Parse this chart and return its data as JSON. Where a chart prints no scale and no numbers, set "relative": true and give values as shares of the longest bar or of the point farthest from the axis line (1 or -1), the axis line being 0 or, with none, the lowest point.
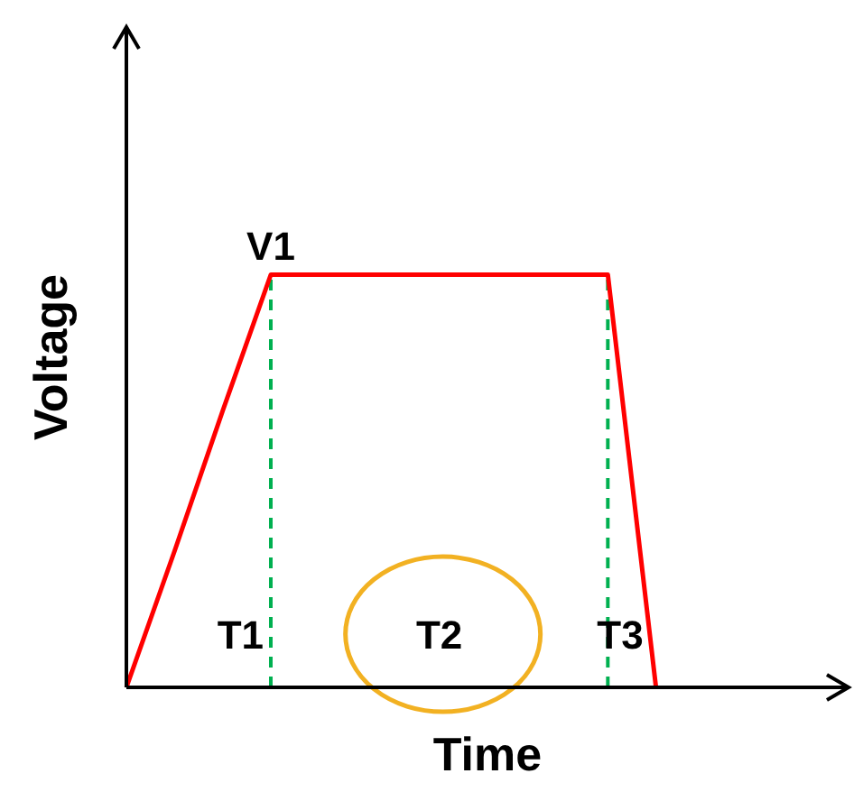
{
  "chart_data": {
    "type": "line",
    "relative": true,
    "xlabel": "Time",
    "ylabel": "Voltage",
    "categories": [
      null,
      null,
      null,
      null,
      null,
      null,
      null,
      null,
      null,
      null,
      null,
      null,
      null,
      null,
      null,
      null
    ],
    "series": [
      {
        "color": "#ff0000",
        "values": [
          0,
          0.33,
          0.67,
          1,
          1,
          1,
          1,
          1,
          1,
          1,
          1,
          0,
          null,
          null,
          null,
          null
        ]
      }
    ],
    "marker": "none",
    "line_style": "solid",
    "grid": false,
    "legend": false,
    "ref_lines": [
      {
        "axis": "x",
        "label": "T1",
        "color": "#00b050",
        "line_style": "dashed"
      },
      {
        "axis": "x",
        "label": "T3",
        "color": "#00b050",
        "line_style": "dashed"
      }
    ],
    "annotations": [
      "V1",
      "T2"
    ]
  }
}
